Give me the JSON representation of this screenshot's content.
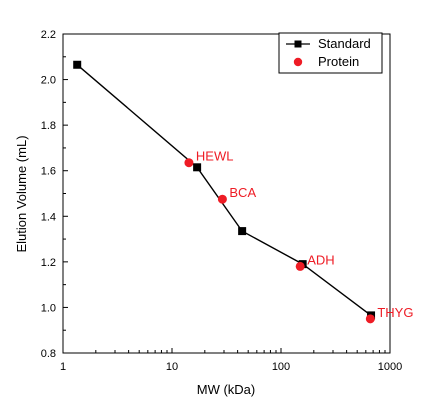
{
  "chart_data": {
    "type": "scatter",
    "title": "",
    "xlabel": "MW (kDa)",
    "ylabel": "Elution Volume (mL)",
    "x_scale": "log",
    "xlim": [
      1,
      1000
    ],
    "ylim": [
      0.8,
      2.2
    ],
    "x_ticks": [
      1,
      10,
      100,
      1000
    ],
    "x_tick_labels": [
      "1",
      "10",
      "100",
      "1000"
    ],
    "y_ticks": [
      0.8,
      1.0,
      1.2,
      1.4,
      1.6,
      1.8,
      2.0,
      2.2
    ],
    "y_tick_labels": [
      "0.8",
      "1.0",
      "1.2",
      "1.4",
      "1.6",
      "1.8",
      "2.0",
      "2.2"
    ],
    "grid": false,
    "legend_position": "top-right",
    "series": [
      {
        "name": "Standard",
        "kind": "line-with-square-markers",
        "color": "#000000",
        "x": [
          1.35,
          17,
          44,
          158,
          670
        ],
        "y": [
          2.065,
          1.615,
          1.335,
          1.19,
          0.965
        ]
      },
      {
        "name": "Protein",
        "kind": "circle-markers",
        "color": "#ee1c25",
        "x": [
          14.3,
          29,
          150,
          660
        ],
        "y": [
          1.635,
          1.475,
          1.18,
          0.95
        ],
        "labels": [
          "HEWL",
          "BCA",
          "ADH",
          "THYG"
        ]
      }
    ]
  }
}
